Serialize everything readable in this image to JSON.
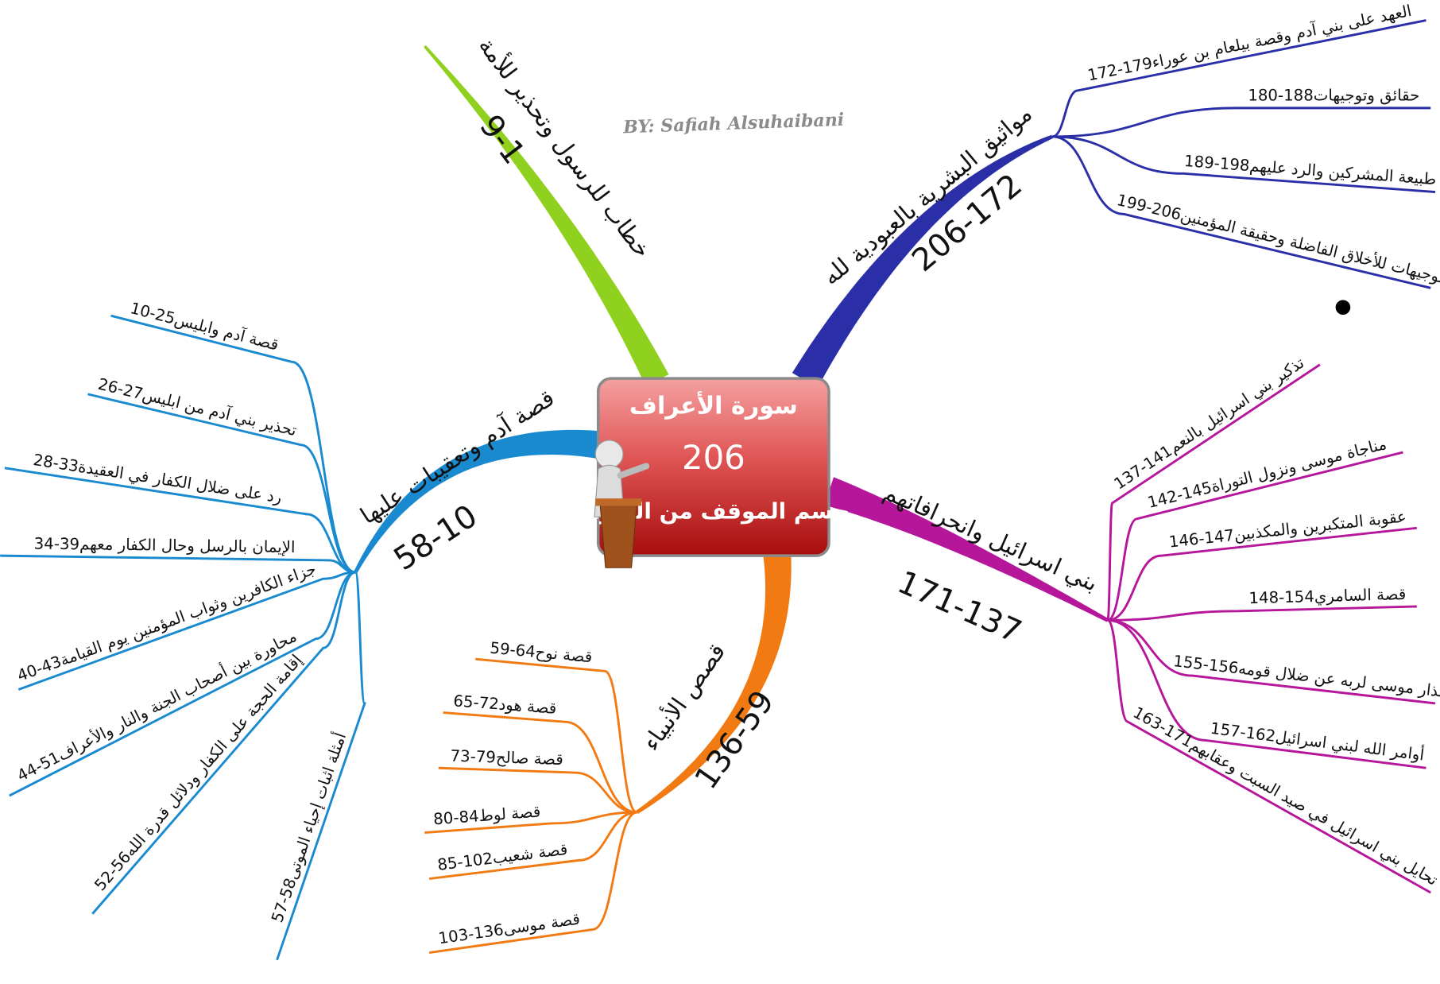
{
  "center": {
    "title": "سورة الأعراف",
    "verses": "206",
    "subtitle": "حسم الموقف من الصراع"
  },
  "author": "BY: Safiah Alsuhaibani",
  "branches": [
    {
      "label": "خطاب للرسول وتحذير للأمة",
      "range": "9-1",
      "children": []
    },
    {
      "label": "مواثيق البشرية بالعبودية لله",
      "range": "206-172",
      "children": [
        {
          "label": "العهد على بني آدم وقصة بيلعام بن عوراء",
          "range": "179-172"
        },
        {
          "label": "حقائق وتوجيهات",
          "range": "188-180"
        },
        {
          "label": "طبيعة المشركين والرد عليهم",
          "range": "198-189"
        },
        {
          "label": "توجيهات للأخلاق الفاضلة وحقيقة المؤمنين",
          "range": "206-199"
        }
      ]
    },
    {
      "label": "بني اسرائيل وانحرافاتهم",
      "range": "171-137",
      "children": [
        {
          "label": "تذكير بني اسرائيل بالنعم",
          "range": "141-137"
        },
        {
          "label": "مناجاة موسى ونزول التوراة",
          "range": "145-142"
        },
        {
          "label": "عقوبة المتكبرين والمكذبين",
          "range": "147-146"
        },
        {
          "label": "قصة السامري",
          "range": "154-148"
        },
        {
          "label": "اعتذار موسى لربه عن ضلال قومه",
          "range": "156-155"
        },
        {
          "label": "أوامر الله لبني اسرائيل",
          "range": "162-157"
        },
        {
          "label": "تحايل بني اسرائيل في صيد السبت وعقابهم",
          "range": "171-163"
        }
      ]
    },
    {
      "label": "قصص الأنبياء",
      "range": "136-59",
      "children": [
        {
          "label": "قصة نوح",
          "range": "64-59"
        },
        {
          "label": "قصة هود",
          "range": "72-65"
        },
        {
          "label": "قصة صالح",
          "range": "79-73"
        },
        {
          "label": "قصة لوط",
          "range": "84-80"
        },
        {
          "label": "قصة شعيب",
          "range": "102-85"
        },
        {
          "label": "قصة موسى",
          "range": "136-103"
        }
      ]
    },
    {
      "label": "قصة آدم وتعقيبات عليها",
      "range": "58-10",
      "children": [
        {
          "label": "قصة آدم وابليس",
          "range": "25-10"
        },
        {
          "label": "تحذير بني آدم من ابليس",
          "range": "27-26"
        },
        {
          "label": "رد على ضلال الكفار في العقيدة",
          "range": "33-28"
        },
        {
          "label": "الإيمان بالرسل وحال الكفار معهم",
          "range": "39-34"
        },
        {
          "label": "جزاء الكافرين وثواب المؤمنين يوم القيامة",
          "range": "43-40"
        },
        {
          "label": "محاورة بين أصحاب الجنة والنار والأعراف",
          "range": "51-44"
        },
        {
          "label": "إقامة الحجة على الكفار ودلائل قدرة الله",
          "range": "56-52"
        },
        {
          "label": "أمثلة اثبات إحياء الموتى",
          "range": "58-57"
        }
      ]
    }
  ]
}
